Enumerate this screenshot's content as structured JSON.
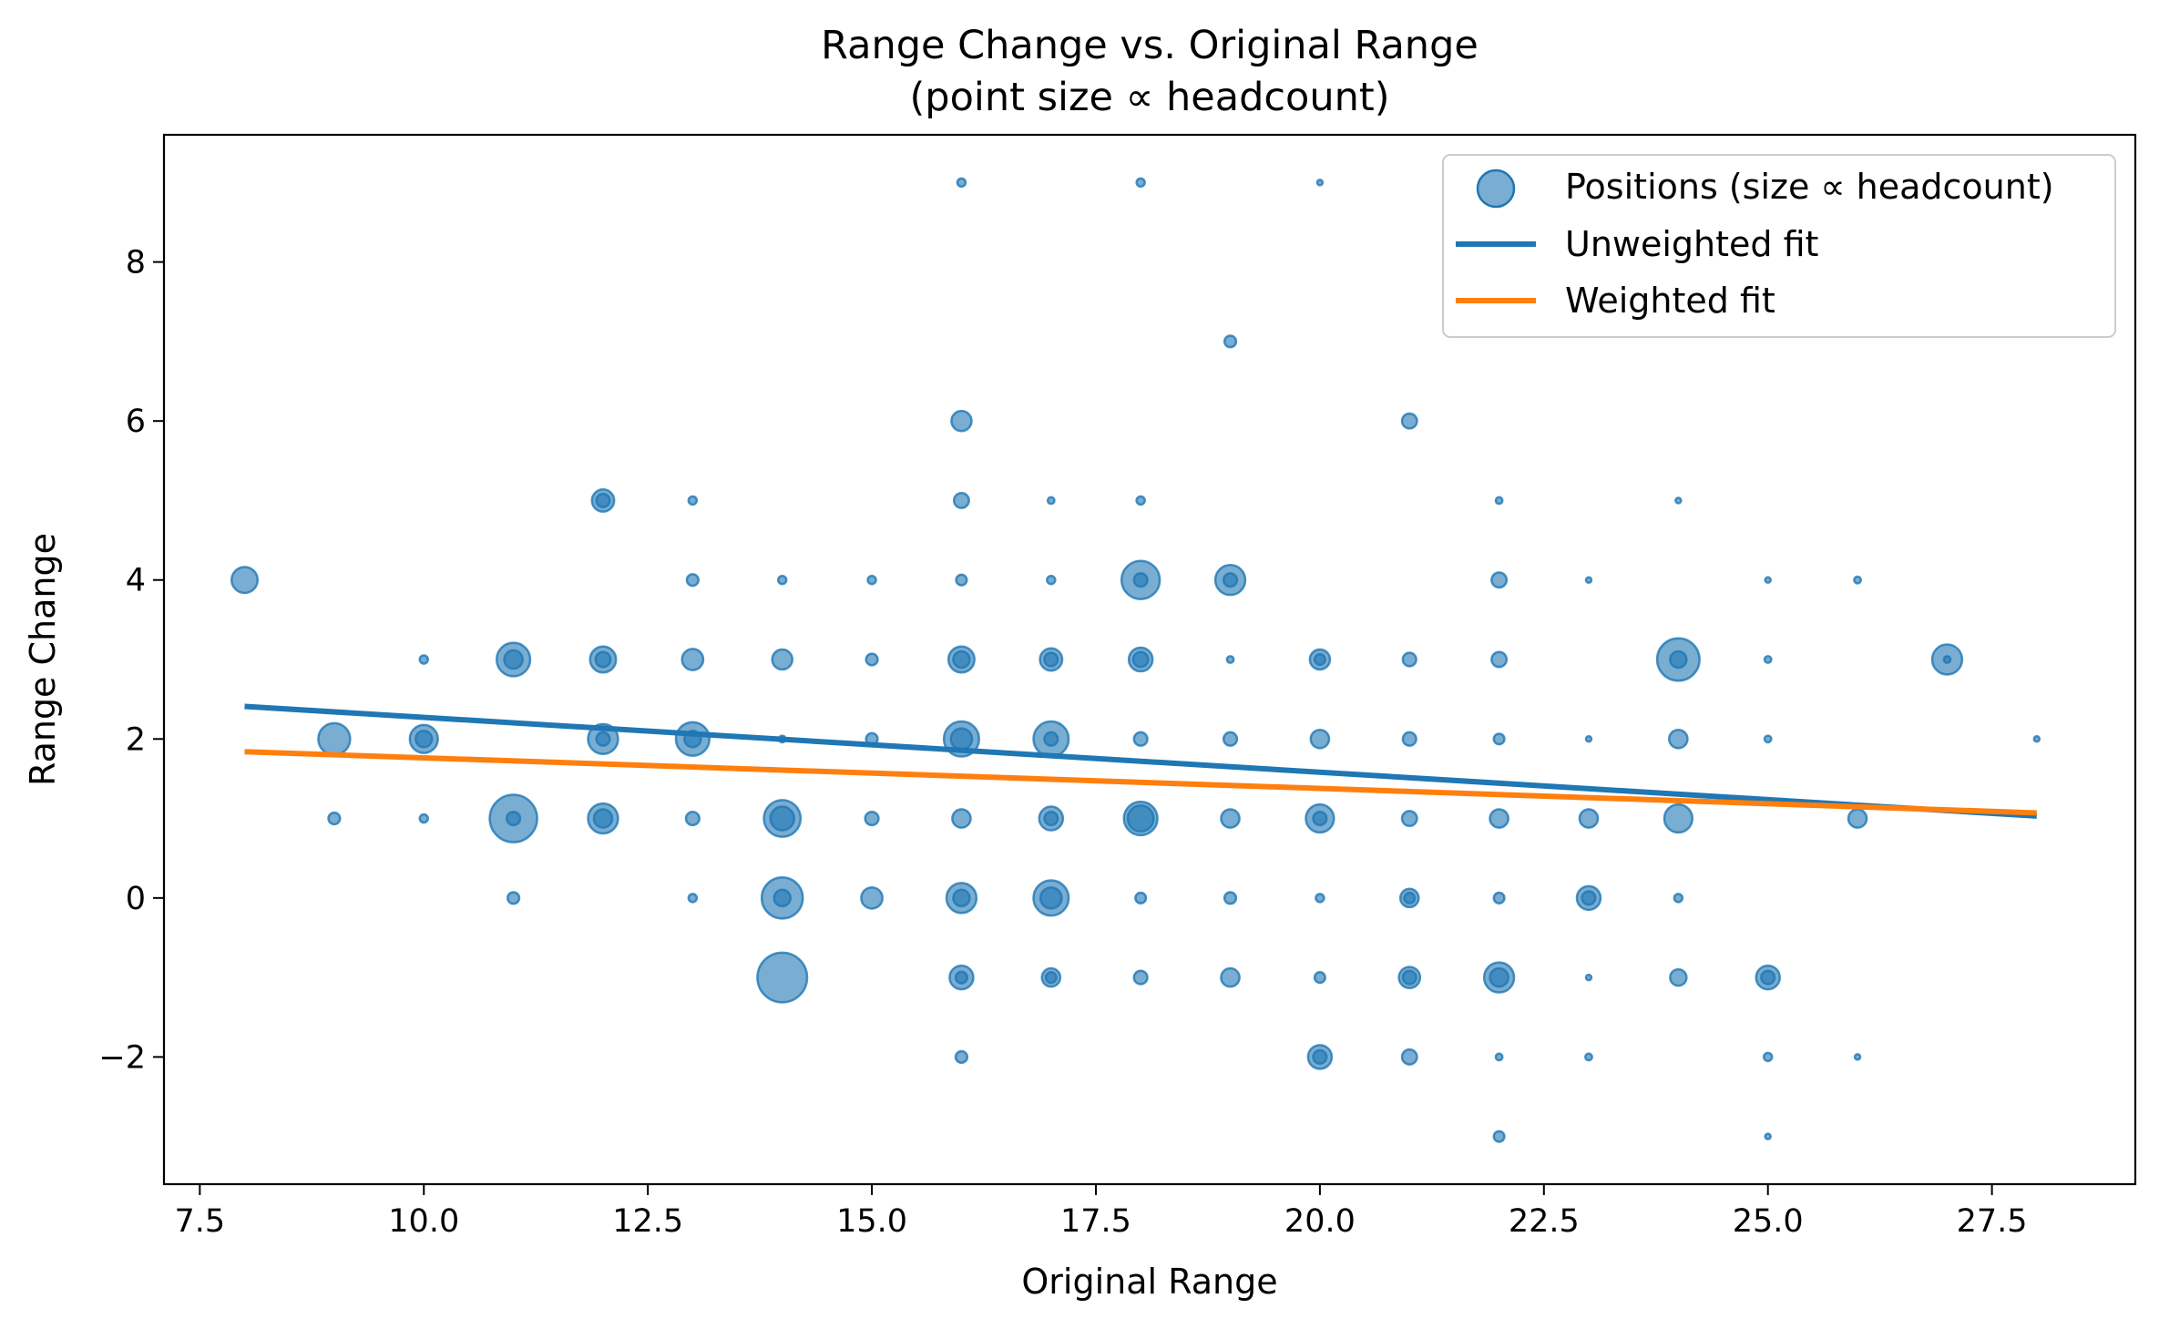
{
  "chart_data": {
    "type": "scatter",
    "title": "Range Change vs. Original Range",
    "subtitle": "(point size ∝ headcount)",
    "xlabel": "Original Range",
    "ylabel": "Range Change",
    "xlim": [
      7.1,
      29.1
    ],
    "ylim": [
      -3.6,
      9.6
    ],
    "x_ticks": [
      7.5,
      10.0,
      12.5,
      15.0,
      17.5,
      20.0,
      22.5,
      25.0,
      27.5
    ],
    "x_tick_labels": [
      "7.5",
      "10.0",
      "12.5",
      "15.0",
      "17.5",
      "20.0",
      "22.5",
      "25.0",
      "27.5"
    ],
    "y_ticks": [
      -2,
      0,
      2,
      4,
      6,
      8
    ],
    "y_tick_labels": [
      "−2",
      "0",
      "2",
      "4",
      "6",
      "8"
    ],
    "grid": false,
    "legend_position": "top-right",
    "legend": [
      {
        "label": "Positions (size ∝ headcount)",
        "kind": "marker",
        "color": "#1f77b4"
      },
      {
        "label": "Unweighted fit",
        "kind": "line",
        "color": "#1f77b4"
      },
      {
        "label": "Weighted fit",
        "kind": "line",
        "color": "#ff7f0e"
      }
    ],
    "colors": {
      "points": "#1f77b4",
      "unweighted": "#1f77b4",
      "weighted": "#ff7f0e"
    },
    "points": [
      {
        "x": 8,
        "y": 4,
        "size": 30
      },
      {
        "x": 9,
        "y": 2,
        "size": 45
      },
      {
        "x": 9,
        "y": 1,
        "size": 6
      },
      {
        "x": 10,
        "y": 3,
        "size": 3
      },
      {
        "x": 10,
        "y": 2,
        "size": 35
      },
      {
        "x": 10,
        "y": 2,
        "size": 12
      },
      {
        "x": 10,
        "y": 1,
        "size": 3
      },
      {
        "x": 11,
        "y": 3,
        "size": 50
      },
      {
        "x": 11,
        "y": 3,
        "size": 15
      },
      {
        "x": 11,
        "y": 1,
        "size": 100
      },
      {
        "x": 11,
        "y": 1,
        "size": 8
      },
      {
        "x": 11,
        "y": 0,
        "size": 6
      },
      {
        "x": 12,
        "y": 5,
        "size": 22
      },
      {
        "x": 12,
        "y": 5,
        "size": 8
      },
      {
        "x": 12,
        "y": 3,
        "size": 30
      },
      {
        "x": 12,
        "y": 3,
        "size": 10
      },
      {
        "x": 12,
        "y": 2,
        "size": 40
      },
      {
        "x": 12,
        "y": 2,
        "size": 8
      },
      {
        "x": 12,
        "y": 1,
        "size": 40
      },
      {
        "x": 12,
        "y": 1,
        "size": 15
      },
      {
        "x": 13,
        "y": 5,
        "size": 3
      },
      {
        "x": 13,
        "y": 4,
        "size": 6
      },
      {
        "x": 13,
        "y": 3,
        "size": 20
      },
      {
        "x": 13,
        "y": 2,
        "size": 50
      },
      {
        "x": 13,
        "y": 2,
        "size": 12
      },
      {
        "x": 13,
        "y": 1,
        "size": 8
      },
      {
        "x": 13,
        "y": 0,
        "size": 3
      },
      {
        "x": 14,
        "y": 4,
        "size": 3
      },
      {
        "x": 14,
        "y": 3,
        "size": 18
      },
      {
        "x": 14,
        "y": 2,
        "size": 2
      },
      {
        "x": 14,
        "y": 1,
        "size": 60
      },
      {
        "x": 14,
        "y": 1,
        "size": 25
      },
      {
        "x": 14,
        "y": 0,
        "size": 75
      },
      {
        "x": 14,
        "y": 0,
        "size": 12
      },
      {
        "x": 14,
        "y": -1,
        "size": 110
      },
      {
        "x": 15,
        "y": 4,
        "size": 3
      },
      {
        "x": 15,
        "y": 3,
        "size": 6
      },
      {
        "x": 15,
        "y": 2,
        "size": 6
      },
      {
        "x": 15,
        "y": 1,
        "size": 8
      },
      {
        "x": 15,
        "y": 0,
        "size": 20
      },
      {
        "x": 16,
        "y": 9,
        "size": 3
      },
      {
        "x": 16,
        "y": 6,
        "size": 18
      },
      {
        "x": 16,
        "y": 5,
        "size": 10
      },
      {
        "x": 16,
        "y": 4,
        "size": 5
      },
      {
        "x": 16,
        "y": 3,
        "size": 30
      },
      {
        "x": 16,
        "y": 3,
        "size": 12
      },
      {
        "x": 16,
        "y": 2,
        "size": 55
      },
      {
        "x": 16,
        "y": 2,
        "size": 20
      },
      {
        "x": 16,
        "y": 1,
        "size": 15
      },
      {
        "x": 16,
        "y": 0,
        "size": 40
      },
      {
        "x": 16,
        "y": 0,
        "size": 12
      },
      {
        "x": 16,
        "y": -1,
        "size": 25
      },
      {
        "x": 16,
        "y": -1,
        "size": 6
      },
      {
        "x": 16,
        "y": -2,
        "size": 6
      },
      {
        "x": 17,
        "y": 5,
        "size": 2
      },
      {
        "x": 17,
        "y": 4,
        "size": 3
      },
      {
        "x": 17,
        "y": 3,
        "size": 22
      },
      {
        "x": 17,
        "y": 3,
        "size": 8
      },
      {
        "x": 17,
        "y": 2,
        "size": 55
      },
      {
        "x": 17,
        "y": 2,
        "size": 8
      },
      {
        "x": 17,
        "y": 1,
        "size": 25
      },
      {
        "x": 17,
        "y": 1,
        "size": 8
      },
      {
        "x": 17,
        "y": 0,
        "size": 55
      },
      {
        "x": 17,
        "y": 0,
        "size": 20
      },
      {
        "x": 17,
        "y": -1,
        "size": 15
      },
      {
        "x": 17,
        "y": -1,
        "size": 5
      },
      {
        "x": 18,
        "y": 9,
        "size": 3
      },
      {
        "x": 18,
        "y": 5,
        "size": 3
      },
      {
        "x": 18,
        "y": 4,
        "size": 65
      },
      {
        "x": 18,
        "y": 4,
        "size": 8
      },
      {
        "x": 18,
        "y": 3,
        "size": 25
      },
      {
        "x": 18,
        "y": 3,
        "size": 10
      },
      {
        "x": 18,
        "y": 2,
        "size": 8
      },
      {
        "x": 18,
        "y": 1,
        "size": 50
      },
      {
        "x": 18,
        "y": 1,
        "size": 30
      },
      {
        "x": 18,
        "y": 0,
        "size": 5
      },
      {
        "x": 18,
        "y": -1,
        "size": 8
      },
      {
        "x": 19,
        "y": 7,
        "size": 6
      },
      {
        "x": 19,
        "y": 4,
        "size": 40
      },
      {
        "x": 19,
        "y": 4,
        "size": 8
      },
      {
        "x": 19,
        "y": 3,
        "size": 2
      },
      {
        "x": 19,
        "y": 2,
        "size": 8
      },
      {
        "x": 19,
        "y": 1,
        "size": 15
      },
      {
        "x": 19,
        "y": 0,
        "size": 6
      },
      {
        "x": 19,
        "y": -1,
        "size": 15
      },
      {
        "x": 20,
        "y": 9,
        "size": 1
      },
      {
        "x": 20,
        "y": 3,
        "size": 18
      },
      {
        "x": 20,
        "y": 3,
        "size": 5
      },
      {
        "x": 20,
        "y": 2,
        "size": 15
      },
      {
        "x": 20,
        "y": 1,
        "size": 35
      },
      {
        "x": 20,
        "y": 1,
        "size": 8
      },
      {
        "x": 20,
        "y": 0,
        "size": 3
      },
      {
        "x": 20,
        "y": -1,
        "size": 5
      },
      {
        "x": 20,
        "y": -2,
        "size": 25
      },
      {
        "x": 20,
        "y": -2,
        "size": 8
      },
      {
        "x": 21,
        "y": 6,
        "size": 10
      },
      {
        "x": 21,
        "y": 3,
        "size": 8
      },
      {
        "x": 21,
        "y": 2,
        "size": 8
      },
      {
        "x": 21,
        "y": 1,
        "size": 10
      },
      {
        "x": 21,
        "y": 0,
        "size": 15
      },
      {
        "x": 21,
        "y": 0,
        "size": 5
      },
      {
        "x": 21,
        "y": -1,
        "size": 20
      },
      {
        "x": 21,
        "y": -1,
        "size": 8
      },
      {
        "x": 21,
        "y": -2,
        "size": 10
      },
      {
        "x": 22,
        "y": 5,
        "size": 2
      },
      {
        "x": 22,
        "y": 4,
        "size": 10
      },
      {
        "x": 22,
        "y": 3,
        "size": 10
      },
      {
        "x": 22,
        "y": 2,
        "size": 5
      },
      {
        "x": 22,
        "y": 1,
        "size": 15
      },
      {
        "x": 22,
        "y": 0,
        "size": 5
      },
      {
        "x": 22,
        "y": -1,
        "size": 40
      },
      {
        "x": 22,
        "y": -1,
        "size": 15
      },
      {
        "x": 22,
        "y": -2,
        "size": 2
      },
      {
        "x": 22,
        "y": -3,
        "size": 5
      },
      {
        "x": 23,
        "y": 4,
        "size": 1
      },
      {
        "x": 23,
        "y": 2,
        "size": 1
      },
      {
        "x": 23,
        "y": 1,
        "size": 15
      },
      {
        "x": 23,
        "y": 0,
        "size": 25
      },
      {
        "x": 23,
        "y": 0,
        "size": 8
      },
      {
        "x": 23,
        "y": -1,
        "size": 1
      },
      {
        "x": 23,
        "y": -2,
        "size": 2
      },
      {
        "x": 24,
        "y": 5,
        "size": 1
      },
      {
        "x": 24,
        "y": 3,
        "size": 80
      },
      {
        "x": 24,
        "y": 3,
        "size": 12
      },
      {
        "x": 24,
        "y": 2,
        "size": 15
      },
      {
        "x": 24,
        "y": 1,
        "size": 35
      },
      {
        "x": 24,
        "y": 0,
        "size": 3
      },
      {
        "x": 24,
        "y": -1,
        "size": 12
      },
      {
        "x": 25,
        "y": 4,
        "size": 1
      },
      {
        "x": 25,
        "y": 3,
        "size": 2
      },
      {
        "x": 25,
        "y": 2,
        "size": 2
      },
      {
        "x": 25,
        "y": -1,
        "size": 25
      },
      {
        "x": 25,
        "y": -1,
        "size": 8
      },
      {
        "x": 25,
        "y": -2,
        "size": 3
      },
      {
        "x": 25,
        "y": -3,
        "size": 1
      },
      {
        "x": 26,
        "y": 4,
        "size": 2
      },
      {
        "x": 26,
        "y": 1,
        "size": 15
      },
      {
        "x": 26,
        "y": -2,
        "size": 1
      },
      {
        "x": 27,
        "y": 3,
        "size": 40
      },
      {
        "x": 27,
        "y": 3,
        "size": 2
      },
      {
        "x": 28,
        "y": 2,
        "size": 1
      }
    ],
    "fits": [
      {
        "name": "Unweighted fit",
        "x": [
          8,
          28
        ],
        "y": [
          2.41,
          1.03
        ],
        "color": "#1f77b4"
      },
      {
        "name": "Weighted fit",
        "x": [
          8,
          28
        ],
        "y": [
          1.84,
          1.07
        ],
        "color": "#ff7f0e"
      }
    ]
  }
}
